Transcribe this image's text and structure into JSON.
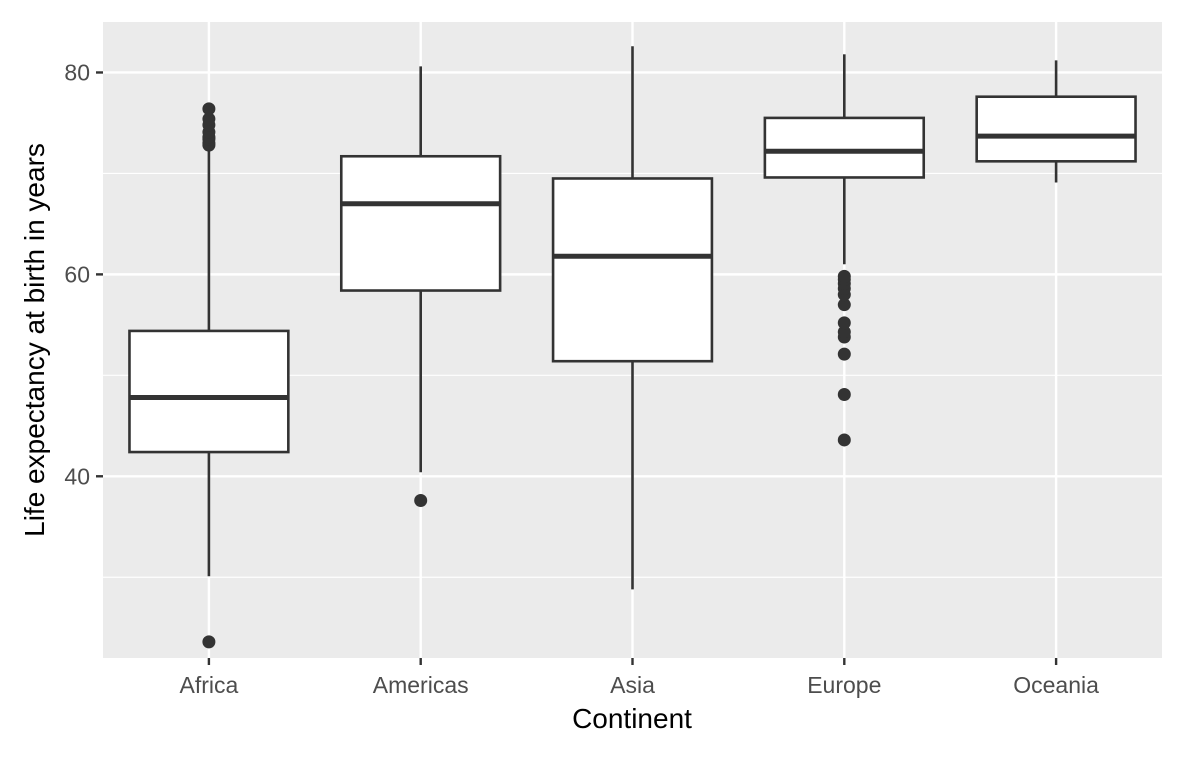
{
  "chart_data": {
    "type": "boxplot",
    "title": "",
    "xlabel": "Continent",
    "ylabel": "Life expectancy at birth in years",
    "ylim": [
      22,
      85
    ],
    "y_ticks": [
      40,
      60,
      80
    ],
    "grid": true,
    "colors": {
      "panel_bg": "#ebebeb",
      "grid": "#ffffff",
      "box_fill": "#ffffff",
      "box_stroke": "#333333",
      "tick_text": "#4d4d4d",
      "title_text": "#000000"
    },
    "categories": [
      "Africa",
      "Americas",
      "Asia",
      "Europe",
      "Oceania"
    ],
    "boxes": [
      {
        "category": "Africa",
        "whisker_low": 30.1,
        "q1": 42.4,
        "median": 47.8,
        "q3": 54.4,
        "whisker_high": 72.9,
        "outliers": [
          23.6,
          72.8,
          73.0,
          73.4,
          73.6,
          74.1,
          74.8,
          75.4,
          76.4
        ]
      },
      {
        "category": "Americas",
        "whisker_low": 40.4,
        "q1": 58.4,
        "median": 67.0,
        "q3": 71.7,
        "whisker_high": 80.6,
        "outliers": [
          37.6
        ]
      },
      {
        "category": "Asia",
        "whisker_low": 28.8,
        "q1": 51.4,
        "median": 61.8,
        "q3": 69.5,
        "whisker_high": 82.6,
        "outliers": []
      },
      {
        "category": "Europe",
        "whisker_low": 61.0,
        "q1": 69.6,
        "median": 72.2,
        "q3": 75.5,
        "whisker_high": 81.8,
        "outliers": [
          43.6,
          48.1,
          52.1,
          53.8,
          54.3,
          55.2,
          57.0,
          58.0,
          58.6,
          59.1,
          59.5,
          59.8
        ]
      },
      {
        "category": "Oceania",
        "whisker_low": 69.1,
        "q1": 71.2,
        "median": 73.7,
        "q3": 77.6,
        "whisker_high": 81.2,
        "outliers": []
      }
    ]
  }
}
